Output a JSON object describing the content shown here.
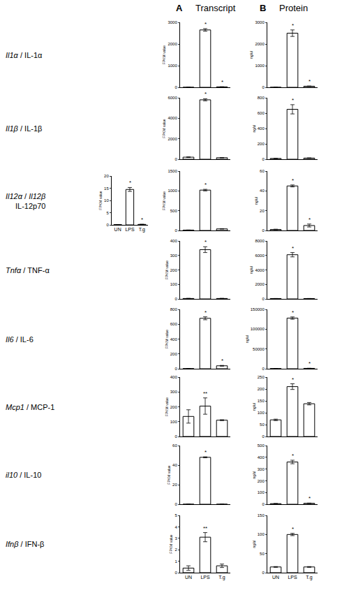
{
  "headers": [
    {
      "letter": "A",
      "text": "Transcript"
    },
    {
      "letter": "B",
      "text": "Protein"
    }
  ],
  "row_labels": [
    {
      "lines": [
        [
          {
            "text": "Il1α",
            "italic": true
          },
          {
            "text": " / IL-1α"
          }
        ]
      ]
    },
    {
      "lines": [
        [
          {
            "text": "Il1β",
            "italic": true
          },
          {
            "text": " / IL-1β"
          }
        ]
      ]
    },
    {
      "lines": [
        [
          {
            "text": "Il12α",
            "italic": true
          },
          {
            "text": " / "
          },
          {
            "text": "Il12β",
            "italic": true
          }
        ],
        [
          {
            "text": "IL-12p70"
          }
        ]
      ]
    },
    {
      "lines": [
        [
          {
            "text": "Tnfα",
            "italic": true
          },
          {
            "text": " / TNF-α"
          }
        ]
      ]
    },
    {
      "lines": [
        [
          {
            "text": "Il6",
            "italic": true
          },
          {
            "text": " / IL-6"
          }
        ]
      ]
    },
    {
      "lines": [
        [
          {
            "text": "Mcp1",
            "italic": true
          },
          {
            "text": " / MCP-1"
          }
        ]
      ]
    },
    {
      "lines": [
        [
          {
            "text": "il10",
            "italic": true
          },
          {
            "text": " / IL-10"
          }
        ]
      ]
    },
    {
      "lines": [
        [
          {
            "text": "Ifnβ",
            "italic": true
          },
          {
            "text": " / IFN-β"
          }
        ]
      ]
    }
  ],
  "chart_data": [
    {
      "type": "bar",
      "ylabel": "FPKM value",
      "categories": [
        "UN",
        "LPS",
        "T.g"
      ],
      "values": [
        0,
        2650,
        20
      ],
      "errors": [
        0,
        60,
        5
      ],
      "ylim": [
        0,
        3000
      ],
      "yticks": [
        0,
        1000,
        2000,
        3000
      ],
      "color": "#ffffff",
      "tick_labels": "y",
      "annotations": [
        {
          "category": "LPS",
          "text": "*"
        },
        {
          "category": "T.g",
          "text": "*"
        }
      ]
    },
    {
      "type": "bar",
      "ylabel": "ng/ul",
      "categories": [
        "UN",
        "LPS",
        "T.g"
      ],
      "values": [
        0,
        2500,
        50
      ],
      "errors": [
        0,
        150,
        10
      ],
      "ylim": [
        0,
        3000
      ],
      "yticks": [
        0,
        1000,
        2000,
        3000
      ],
      "color": "#ffffff",
      "tick_labels": "y",
      "annotations": [
        {
          "category": "LPS",
          "text": "*"
        },
        {
          "category": "T.g",
          "text": "*"
        }
      ]
    },
    {
      "type": "bar",
      "ylabel": "FPKM value",
      "categories": [
        "UN",
        "LPS",
        "T.g"
      ],
      "values": [
        200,
        5800,
        150
      ],
      "errors": [
        30,
        100,
        20
      ],
      "ylim": [
        0,
        6000
      ],
      "yticks": [
        0,
        2000,
        4000,
        6000
      ],
      "color": "#ffffff",
      "tick_labels": "y",
      "annotations": [
        {
          "category": "LPS",
          "text": "*"
        }
      ]
    },
    {
      "type": "bar",
      "ylabel": "ng/ul",
      "categories": [
        "UN",
        "LPS",
        "T.g"
      ],
      "values": [
        10,
        650,
        15
      ],
      "errors": [
        2,
        60,
        3
      ],
      "ylim": [
        0,
        800
      ],
      "yticks": [
        0,
        200,
        400,
        600,
        800
      ],
      "color": "#ffffff",
      "tick_labels": "y",
      "annotations": [
        {
          "category": "LPS",
          "text": "*"
        }
      ]
    },
    {
      "type": "bar",
      "ylabel": "FPKM value",
      "categories": [
        "UN",
        "LPS",
        "T.g"
      ],
      "values": [
        10,
        1020,
        40
      ],
      "errors": [
        2,
        20,
        5
      ],
      "ylim": [
        0,
        1500
      ],
      "yticks": [
        0,
        500,
        1000,
        1500
      ],
      "color": "#ffffff",
      "tick_labels": "y",
      "annotations": [
        {
          "category": "LPS",
          "text": "*"
        }
      ]
    },
    {
      "type": "bar",
      "ylabel": "ng/ul",
      "categories": [
        "UN",
        "LPS",
        "T.g"
      ],
      "values": [
        1,
        45,
        5
      ],
      "errors": [
        0.3,
        1,
        1.5
      ],
      "ylim": [
        0,
        60
      ],
      "yticks": [
        0,
        20,
        40,
        60
      ],
      "color": "#ffffff",
      "tick_labels": "y",
      "annotations": [
        {
          "category": "LPS",
          "text": "*"
        },
        {
          "category": "T.g",
          "text": "*"
        }
      ]
    },
    {
      "type": "bar",
      "ylabel": "FPKM value",
      "categories": [
        "UN",
        "LPS",
        "T.g"
      ],
      "values": [
        3,
        340,
        3
      ],
      "errors": [
        1,
        20,
        1
      ],
      "ylim": [
        0,
        400
      ],
      "yticks": [
        0,
        100,
        200,
        300,
        400
      ],
      "color": "#ffffff",
      "tick_labels": "y",
      "annotations": [
        {
          "category": "LPS",
          "text": "*"
        }
      ]
    },
    {
      "type": "bar",
      "ylabel": "ng/ul",
      "categories": [
        "UN",
        "LPS",
        "T.g"
      ],
      "values": [
        50,
        6100,
        50
      ],
      "errors": [
        10,
        300,
        10
      ],
      "ylim": [
        0,
        8000
      ],
      "yticks": [
        0,
        2000,
        4000,
        6000,
        8000
      ],
      "color": "#ffffff",
      "tick_labels": "y",
      "annotations": [
        {
          "category": "LPS",
          "text": "*"
        }
      ]
    },
    {
      "type": "bar",
      "ylabel": "FPKM value",
      "categories": [
        "UN",
        "LPS",
        "T.g"
      ],
      "values": [
        2,
        680,
        40
      ],
      "errors": [
        1,
        20,
        5
      ],
      "ylim": [
        0,
        800
      ],
      "yticks": [
        0,
        200,
        400,
        600,
        800
      ],
      "color": "#ffffff",
      "tick_labels": "y",
      "annotations": [
        {
          "category": "LPS",
          "text": "*"
        },
        {
          "category": "T.g",
          "text": "*"
        }
      ]
    },
    {
      "type": "bar",
      "ylabel": "ng/ul",
      "categories": [
        "UN",
        "LPS",
        "T.g"
      ],
      "values": [
        500,
        128000,
        1000
      ],
      "errors": [
        100,
        3000,
        200
      ],
      "ylim": [
        0,
        150000
      ],
      "yticks": [
        0,
        50000,
        100000,
        150000
      ],
      "color": "#ffffff",
      "tick_labels": "y",
      "annotations": [
        {
          "category": "LPS",
          "text": "*"
        },
        {
          "category": "T.g",
          "text": "*"
        }
      ]
    },
    {
      "type": "bar",
      "ylabel": "FPKM value",
      "categories": [
        "UN",
        "LPS",
        "T.g"
      ],
      "values": [
        135,
        205,
        110
      ],
      "errors": [
        45,
        55,
        3
      ],
      "ylim": [
        0,
        400
      ],
      "yticks": [
        0,
        100,
        200,
        300,
        400
      ],
      "color": "#ffffff",
      "tick_labels": "y",
      "annotations": [
        {
          "category": "LPS",
          "text": "**"
        }
      ]
    },
    {
      "type": "bar",
      "ylabel": "ng/ul",
      "categories": [
        "UN",
        "LPS",
        "T.g"
      ],
      "values": [
        70,
        210,
        138
      ],
      "errors": [
        3,
        12,
        5
      ],
      "ylim": [
        0,
        250
      ],
      "yticks": [
        0,
        50,
        100,
        150,
        200,
        250
      ],
      "color": "#ffffff",
      "tick_labels": "y",
      "annotations": [
        {
          "category": "LPS",
          "text": "*"
        }
      ]
    },
    {
      "type": "bar",
      "ylabel": "FPKM value",
      "categories": [
        "UN",
        "LPS",
        "T.g"
      ],
      "values": [
        0,
        48,
        0
      ],
      "errors": [
        0,
        0.5,
        0
      ],
      "ylim": [
        0,
        60
      ],
      "yticks": [
        0,
        20,
        40,
        60
      ],
      "color": "#ffffff",
      "tick_labels": "y",
      "annotations": [
        {
          "category": "LPS",
          "text": "*"
        }
      ]
    },
    {
      "type": "bar",
      "ylabel": "ng/ul",
      "categories": [
        "UN",
        "LPS",
        "T.g"
      ],
      "values": [
        5,
        360,
        8
      ],
      "errors": [
        1,
        15,
        2
      ],
      "ylim": [
        0,
        500
      ],
      "yticks": [
        0,
        100,
        200,
        300,
        400,
        500
      ],
      "color": "#ffffff",
      "tick_labels": "y",
      "annotations": [
        {
          "category": "LPS",
          "text": "*"
        },
        {
          "category": "T.g",
          "text": "*"
        }
      ]
    },
    {
      "type": "bar",
      "ylabel": "FPKM value",
      "categories": [
        "UN",
        "LPS",
        "T.g"
      ],
      "values": [
        0.4,
        3.1,
        0.6
      ],
      "errors": [
        0.2,
        0.4,
        0.15
      ],
      "ylim": [
        0,
        5
      ],
      "yticks": [
        0,
        1,
        2,
        3,
        4,
        5
      ],
      "color": "#ffffff",
      "annotations": [
        {
          "category": "LPS",
          "text": "**"
        }
      ]
    },
    {
      "type": "bar",
      "ylabel": "ng/ul",
      "categories": [
        "UN",
        "LPS",
        "T.g"
      ],
      "values": [
        15,
        100,
        15
      ],
      "errors": [
        1,
        3,
        1
      ],
      "ylim": [
        0,
        150
      ],
      "yticks": [
        0,
        50,
        100,
        150
      ],
      "color": "#ffffff",
      "annotations": [
        {
          "category": "LPS",
          "text": "*"
        }
      ]
    },
    {
      "type": "bar",
      "ylabel": "FPKM value",
      "categories": [
        "UN",
        "LPS",
        "T.g"
      ],
      "values": [
        0.1,
        14.5,
        0.2
      ],
      "errors": [
        0.05,
        0.8,
        0.05
      ],
      "ylim": [
        0,
        20
      ],
      "yticks": [
        0,
        5,
        10,
        15,
        20
      ],
      "color": "#ffffff",
      "annotations": [
        {
          "category": "LPS",
          "text": "*"
        },
        {
          "category": "T.g",
          "text": "*"
        }
      ]
    }
  ]
}
